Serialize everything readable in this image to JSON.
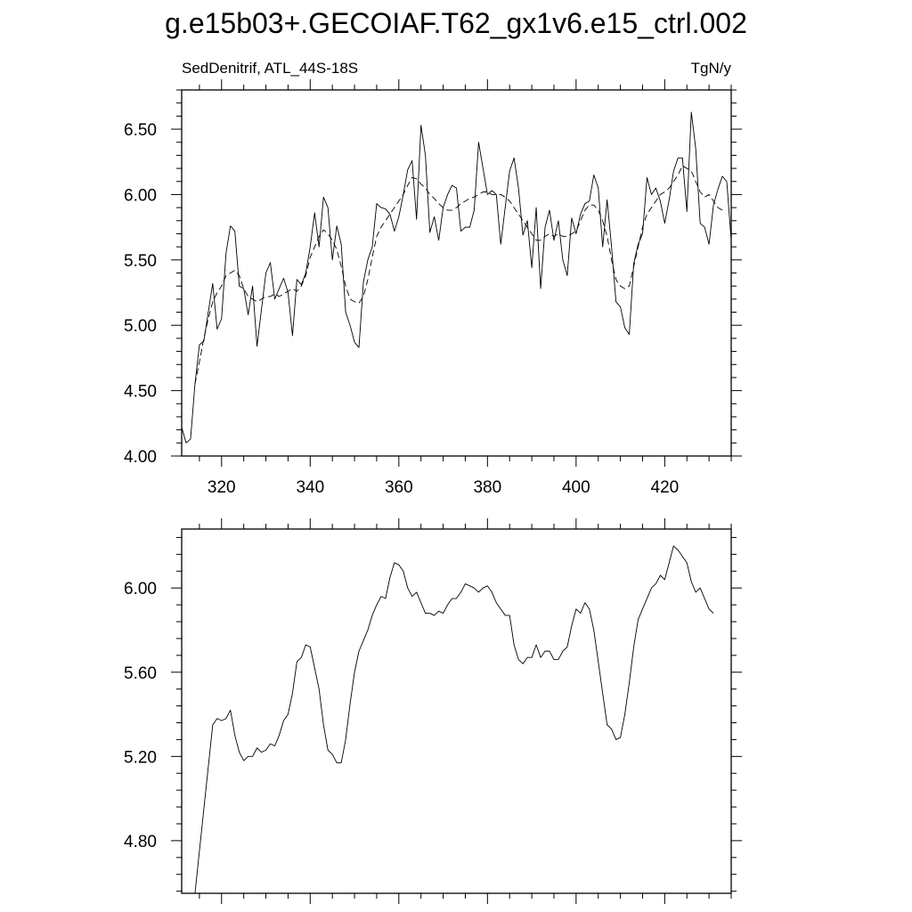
{
  "figure": {
    "title": "g.e15b03+.GECOIAF.T62_gx1v6.e15_ctrl.002"
  },
  "chart_data": [
    {
      "type": "line",
      "left_label": "SedDenitrif, ATL_44S-18S",
      "right_label": "TgN/y",
      "xlim": [
        311,
        435
      ],
      "ylim": [
        4.0,
        6.8
      ],
      "x_ticks": [
        320,
        340,
        360,
        380,
        400,
        420
      ],
      "y_ticks": [
        4.0,
        4.5,
        5.0,
        5.5,
        6.0,
        6.5
      ],
      "y_tick_labels": [
        "4.00",
        "4.50",
        "5.00",
        "5.50",
        "6.00",
        "6.50"
      ],
      "grid": false,
      "x_start": 311,
      "series": [
        {
          "style": "solid",
          "values": [
            4.22,
            4.1,
            4.13,
            4.55,
            4.85,
            4.88,
            5.1,
            5.32,
            4.97,
            5.05,
            5.55,
            5.76,
            5.72,
            5.3,
            5.28,
            5.08,
            5.3,
            4.84,
            5.12,
            5.4,
            5.48,
            5.2,
            5.28,
            5.36,
            5.25,
            4.92,
            5.35,
            5.31,
            5.4,
            5.6,
            5.86,
            5.6,
            5.98,
            5.9,
            5.5,
            5.76,
            5.62,
            5.1,
            5.0,
            4.87,
            4.83,
            5.33,
            5.5,
            5.6,
            5.93,
            5.9,
            5.89,
            5.85,
            5.72,
            5.83,
            6.0,
            6.19,
            6.26,
            5.81,
            6.53,
            6.3,
            5.71,
            5.83,
            5.65,
            5.9,
            6.0,
            6.07,
            6.05,
            5.72,
            5.75,
            5.75,
            5.88,
            6.4,
            6.2,
            6.0,
            6.03,
            6.0,
            5.62,
            5.9,
            6.18,
            6.28,
            6.05,
            5.69,
            5.8,
            5.44,
            5.9,
            5.28,
            5.75,
            5.88,
            5.65,
            5.8,
            5.5,
            5.38,
            5.82,
            5.7,
            5.85,
            5.93,
            5.95,
            6.15,
            6.05,
            5.6,
            5.96,
            5.6,
            5.18,
            5.14,
            4.98,
            4.93,
            5.47,
            5.62,
            5.7,
            6.13,
            6.0,
            6.05,
            5.95,
            5.78,
            5.96,
            6.18,
            6.28,
            6.28,
            5.87,
            6.63,
            6.35,
            5.78,
            5.75,
            5.62,
            5.92,
            6.04,
            6.14,
            6.1,
            5.65
          ]
        },
        {
          "style": "dashed",
          "values": [
            null,
            null,
            null,
            4.55,
            4.72,
            4.9,
            5.05,
            5.18,
            5.25,
            5.3,
            5.38,
            5.4,
            5.42,
            5.38,
            5.28,
            5.22,
            5.2,
            5.18,
            5.2,
            5.22,
            5.22,
            5.24,
            5.22,
            5.24,
            5.26,
            5.28,
            5.26,
            5.3,
            5.38,
            5.52,
            5.6,
            5.68,
            5.73,
            5.7,
            5.65,
            5.58,
            5.45,
            5.3,
            5.2,
            5.18,
            5.17,
            5.22,
            5.35,
            5.52,
            5.68,
            5.75,
            5.8,
            5.85,
            5.9,
            5.95,
            6.0,
            6.07,
            6.13,
            6.12,
            6.08,
            6.05,
            6.0,
            5.97,
            5.93,
            5.9,
            5.88,
            5.88,
            5.9,
            5.93,
            5.95,
            5.97,
            5.98,
            6.0,
            6.02,
            6.02,
            6.0,
            6.0,
            6.0,
            5.98,
            5.95,
            5.9,
            5.85,
            5.8,
            5.75,
            5.7,
            5.65,
            5.65,
            5.68,
            5.7,
            5.68,
            5.7,
            5.68,
            5.68,
            5.7,
            5.72,
            5.8,
            5.88,
            5.92,
            5.92,
            5.88,
            5.8,
            5.68,
            5.5,
            5.35,
            5.3,
            5.28,
            5.3,
            5.45,
            5.6,
            5.75,
            5.85,
            5.9,
            5.95,
            6.0,
            6.02,
            6.05,
            6.1,
            6.15,
            6.22,
            6.2,
            6.18,
            6.1,
            6.02,
            5.98,
            6.0,
            5.95,
            5.9,
            5.88,
            null,
            null
          ]
        }
      ]
    },
    {
      "type": "line",
      "xlim": [
        311,
        435
      ],
      "ylim": [
        4.55,
        6.28
      ],
      "x_ticks": [
        320,
        340,
        360,
        380,
        400,
        420
      ],
      "y_ticks": [
        4.8,
        5.2,
        5.6,
        6.0
      ],
      "y_tick_labels": [
        "4.80",
        "5.20",
        "5.60",
        "6.00"
      ],
      "grid": false,
      "x_start": 314,
      "series": [
        {
          "style": "solid",
          "values": [
            4.55,
            4.75,
            4.95,
            5.15,
            5.35,
            5.38,
            5.37,
            5.38,
            5.42,
            5.3,
            5.22,
            5.18,
            5.2,
            5.2,
            5.24,
            5.22,
            5.23,
            5.26,
            5.25,
            5.3,
            5.37,
            5.4,
            5.5,
            5.65,
            5.67,
            5.73,
            5.72,
            5.62,
            5.52,
            5.35,
            5.23,
            5.21,
            5.17,
            5.17,
            5.28,
            5.45,
            5.6,
            5.7,
            5.75,
            5.8,
            5.87,
            5.92,
            5.96,
            5.95,
            6.05,
            6.12,
            6.11,
            6.08,
            6.0,
            5.96,
            5.98,
            5.93,
            5.88,
            5.88,
            5.87,
            5.89,
            5.88,
            5.92,
            5.95,
            5.95,
            5.98,
            6.02,
            6.01,
            6.0,
            5.98,
            6.0,
            6.01,
            5.98,
            5.93,
            5.9,
            5.87,
            5.87,
            5.73,
            5.66,
            5.64,
            5.67,
            5.67,
            5.73,
            5.67,
            5.7,
            5.7,
            5.66,
            5.66,
            5.7,
            5.72,
            5.82,
            5.9,
            5.88,
            5.93,
            5.9,
            5.8,
            5.65,
            5.5,
            5.35,
            5.33,
            5.28,
            5.29,
            5.4,
            5.55,
            5.72,
            5.85,
            5.9,
            5.95,
            6.0,
            6.02,
            6.06,
            6.04,
            6.12,
            6.2,
            6.18,
            6.15,
            6.12,
            6.03,
            5.98,
            6.0,
            5.95,
            5.9,
            5.88
          ]
        }
      ]
    }
  ]
}
